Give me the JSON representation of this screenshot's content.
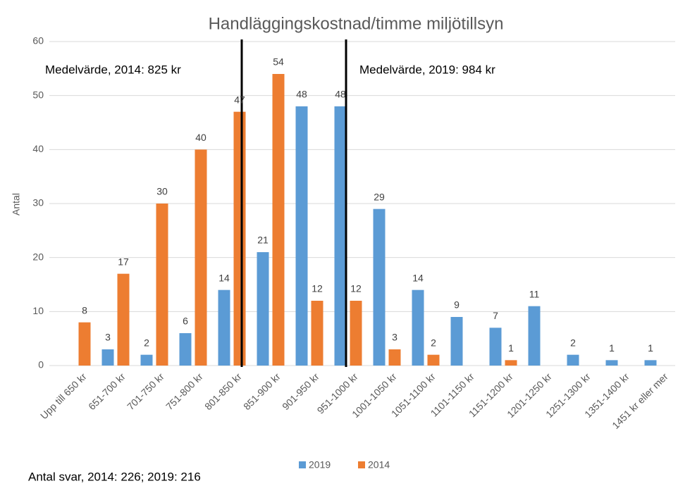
{
  "chart_data": {
    "type": "bar",
    "title": "Handläggingskostnad/timme miljötillsyn",
    "y_label": "Antal",
    "annotations": [
      "Medelvärde, 2014: 825 kr",
      "Medelvärde, 2019: 984 kr"
    ],
    "footnote": "Antal svar, 2014: 226; 2019: 216",
    "categories": [
      "Upp till 650 kr",
      "651-700 kr",
      "701-750 kr",
      "751-800 kr",
      "801-850 kr",
      "851-900 kr",
      "901-950 kr",
      "951-1000 kr",
      "1001-1050 kr",
      "1051-1100 kr",
      "1101-1150 kr",
      "1151-1200 kr",
      "1201-1250 kr",
      "1251-1300 kr",
      "1351-1400 kr",
      "1451 kr eller mer"
    ],
    "series": [
      {
        "name": "2019",
        "color": "#5b9bd5",
        "values": [
          null,
          3,
          2,
          6,
          14,
          21,
          48,
          48,
          29,
          14,
          9,
          7,
          11,
          2,
          1,
          1
        ]
      },
      {
        "name": "2014",
        "color": "#ed7d31",
        "values": [
          8,
          17,
          30,
          40,
          47,
          54,
          12,
          12,
          3,
          2,
          null,
          1,
          null,
          null,
          null,
          null
        ]
      }
    ],
    "ylim": [
      0,
      60
    ],
    "yticks": [
      0,
      10,
      20,
      30,
      40,
      50,
      60
    ],
    "grid": true,
    "legend": "bottom"
  }
}
